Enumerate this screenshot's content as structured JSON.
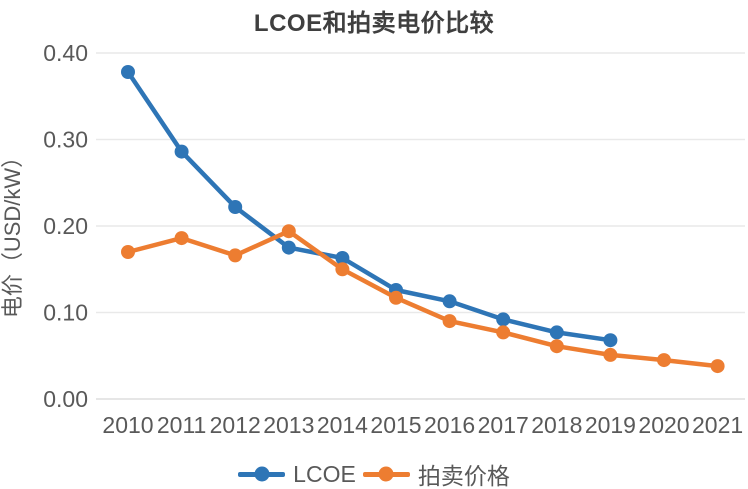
{
  "chart_data": {
    "type": "line",
    "title": "LCOE和拍卖电价比较",
    "xlabel": "",
    "ylabel": "电价（USD/kW）",
    "categories": [
      2010,
      2011,
      2012,
      2013,
      2014,
      2015,
      2016,
      2017,
      2018,
      2019,
      2020,
      2021
    ],
    "series": [
      {
        "name": "LCOE",
        "color": "#2E75B6",
        "values": [
          0.378,
          0.286,
          0.222,
          0.175,
          0.163,
          0.126,
          0.113,
          0.092,
          0.077,
          0.068,
          null,
          null
        ]
      },
      {
        "name": "拍卖价格",
        "color": "#ED7D31",
        "values": [
          0.17,
          0.186,
          0.166,
          0.194,
          0.15,
          0.117,
          0.09,
          0.077,
          0.061,
          0.051,
          0.045,
          0.038
        ]
      }
    ],
    "ylim": [
      0.0,
      0.4
    ],
    "y_ticks": [
      0.4,
      0.3,
      0.2,
      0.1,
      0.0
    ],
    "y_tick_labels": [
      "0.40",
      "0.30",
      "0.20",
      "0.10",
      "0.00"
    ],
    "grid": "horizontal-only",
    "legend_position": "bottom-center",
    "marker": "circle"
  }
}
